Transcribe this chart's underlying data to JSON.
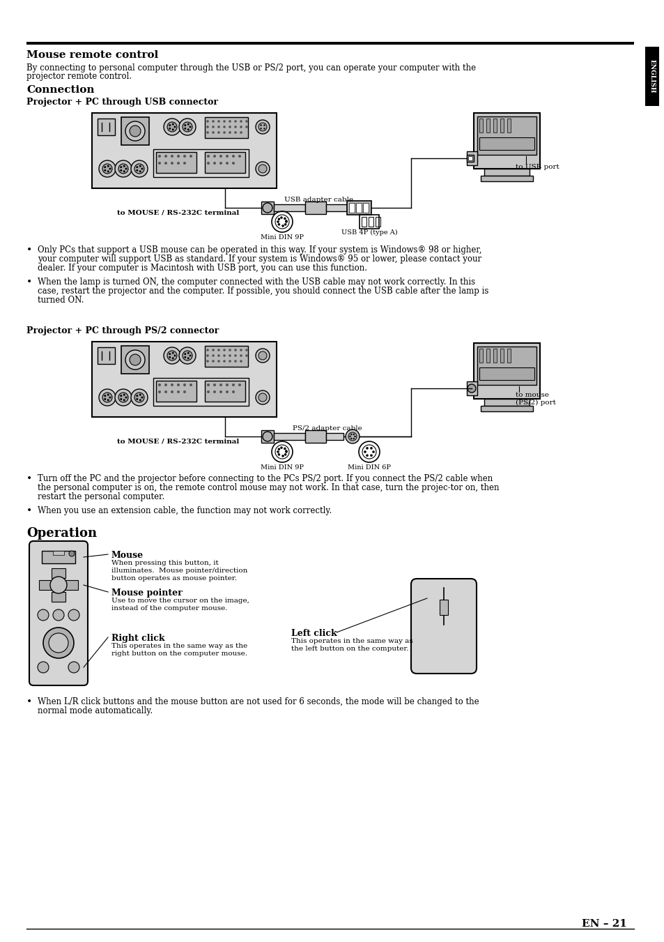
{
  "page_bg": "#ffffff",
  "section1_title": "Mouse remote control",
  "section1_body1": "By connecting to personal computer through the USB or PS/2 port, you can operate your computer with the",
  "section1_body2": "projector remote control.",
  "conn_title": "Connection",
  "usb_sub": "Projector + PC through USB connector",
  "ps2_sub": "Projector + PC through PS/2 connector",
  "usb_terminal": "to MOUSE / RS-232C terminal",
  "usb_cable": "USB adapter cable",
  "usb_port": "to USB port",
  "usb_din9": "Mini DIN 9P",
  "usb_4p": "USB 4P (type A)",
  "ps2_terminal": "to MOUSE / RS-232C terminal",
  "ps2_cable": "PS/2 adapter cable",
  "ps2_port": "to mouse\n(PS/2) port",
  "ps2_din9": "Mini DIN 9P",
  "ps2_din6": "Mini DIN 6P",
  "usb_b1l1": "Only PCs that support a USB mouse can be operated in this way. If your system is Windows® 98 or higher,",
  "usb_b1l2": "your computer will support USB as standard. If your system is Windows® 95 or lower, please contact your",
  "usb_b1l3": "dealer. If your computer is Macintosh with USB port, you can use this function.",
  "usb_b2l1": "When the lamp is turned ON, the computer connected with the USB cable may not work correctly. In this",
  "usb_b2l2": "case, restart the projector and the computer. If possible, you should connect the USB cable after the lamp is",
  "usb_b2l3": "turned ON.",
  "ps2_b1l1": "Turn off the PC and the projector before connecting to the PCs PS/2 port. If you connect the PS/2 cable when",
  "ps2_b1l2": "the personal computer is on, the remote control mouse may not work. In that case, turn the projec­tor on, then",
  "ps2_b1l3": "restart the personal computer.",
  "ps2_b2l1": "When you use an extension cable, the function may not work correctly.",
  "op_title": "Operation",
  "m_label": "Mouse",
  "m_desc1": "When pressing this button, it",
  "m_desc2": "illuminates.  Mouse pointer/direction",
  "m_desc3": "button operates as mouse pointer.",
  "mp_label": "Mouse pointer",
  "mp_desc1": "Use to move the cursor on the image,",
  "mp_desc2": "instead of the computer mouse.",
  "rc_label": "Right click",
  "rc_desc1": "This operates in the same way as the",
  "rc_desc2": "right button on the computer mouse.",
  "lc_label": "Left click",
  "lc_desc1": "This operates in the same way as",
  "lc_desc2": "the left button on the computer.",
  "fin_b1": "When L/R click buttons and the mouse button are not used for 6 seconds, the mode will be changed to the",
  "fin_b2": "normal mode automatically.",
  "page_num": "EN – 21"
}
